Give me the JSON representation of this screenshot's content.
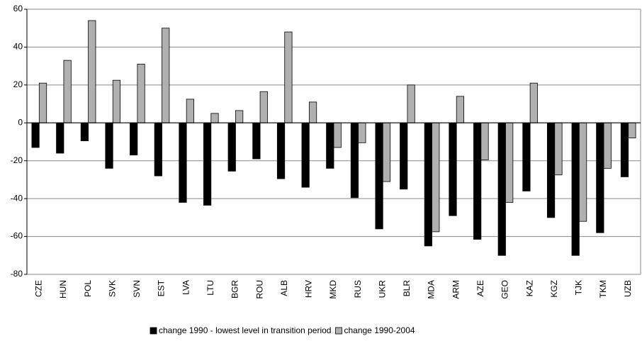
{
  "chart_data": {
    "type": "bar",
    "categories": [
      "CZE",
      "HUN",
      "POL",
      "SVK",
      "SVN",
      "EST",
      "LVA",
      "LTU",
      "BGR",
      "ROU",
      "ALB",
      "HRV",
      "MKD",
      "RUS",
      "UKR",
      "BLR",
      "MDA",
      "ARM",
      "AZE",
      "GEO",
      "KAZ",
      "KGZ",
      "TJK",
      "TKM",
      "UZB"
    ],
    "series": [
      {
        "name": "change 1990 - lowest level in transition period",
        "color": "#000000",
        "values": [
          -13,
          -16,
          -9.5,
          -24,
          -17,
          -28,
          -42,
          -43.5,
          -25.5,
          -19,
          -29.5,
          -34,
          -24,
          -39.5,
          -56,
          -35,
          -65,
          -49,
          -61.5,
          -70,
          -36,
          -50,
          -70,
          -58,
          -28.5
        ]
      },
      {
        "name": "change 1990-2004",
        "color": "#b0b0b0",
        "values": [
          21,
          33,
          54,
          22.5,
          31,
          50,
          12.5,
          5,
          6.5,
          16.5,
          48,
          11,
          -13,
          -10.5,
          -31,
          20,
          -57.5,
          14,
          -19.5,
          -42,
          21,
          -27.5,
          -52,
          -24,
          -8
        ]
      }
    ],
    "ylim": [
      -80,
      60
    ],
    "yticks": [
      -80,
      -60,
      -40,
      -20,
      0,
      20,
      40,
      60
    ],
    "grid": true,
    "legend": "bottom"
  }
}
